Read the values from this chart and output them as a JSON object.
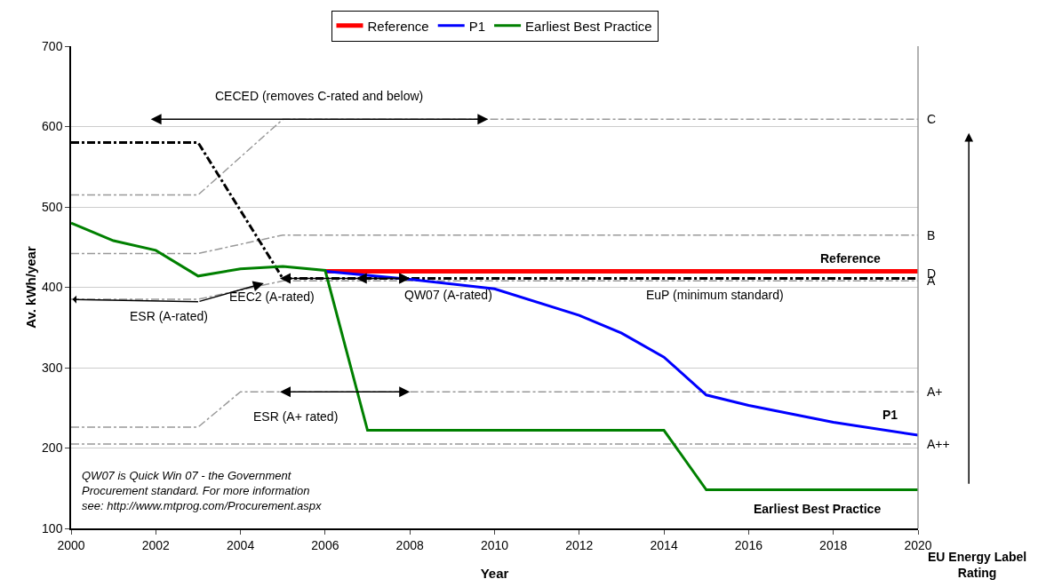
{
  "chart_data": {
    "type": "line",
    "xlabel": "Year",
    "ylabel": "Av. kWh/year",
    "xlim": [
      2000,
      2020
    ],
    "xticks": [
      2000,
      2002,
      2004,
      2006,
      2008,
      2010,
      2012,
      2014,
      2016,
      2018,
      2020
    ],
    "ylim": [
      100,
      700
    ],
    "yticks": [
      100,
      200,
      300,
      400,
      500,
      600,
      700
    ],
    "grid": "y",
    "legend": "top",
    "line_style": "solid",
    "marker": "none",
    "series": [
      {
        "name": "C",
        "color": "#999999",
        "line_style": "dashdot",
        "x": [
          2000,
          2003,
          2005,
          2020
        ],
        "values": [
          515,
          515,
          609,
          609
        ]
      },
      {
        "name": "B",
        "color": "#999999",
        "line_style": "dashdot",
        "x": [
          2000,
          2003,
          2005,
          2020
        ],
        "values": [
          442,
          442,
          465,
          465
        ]
      },
      {
        "name": "A",
        "color": "#999999",
        "line_style": "dashdot",
        "x": [
          2000,
          2003,
          2005,
          2020
        ],
        "values": [
          385,
          385,
          408,
          408
        ]
      },
      {
        "name": "A+",
        "color": "#999999",
        "line_style": "dashdot",
        "x": [
          2000,
          2003,
          2004,
          2020
        ],
        "values": [
          226,
          226,
          270,
          270
        ]
      },
      {
        "name": "A++",
        "color": "#999999",
        "line_style": "dashdot",
        "x": [
          2000,
          2020
        ],
        "values": [
          205,
          205
        ]
      },
      {
        "name": "D",
        "color": "#000000",
        "line_style": "dashdot",
        "x": [
          2000,
          2003,
          2005,
          2020
        ],
        "values": [
          580,
          580,
          411,
          411
        ]
      },
      {
        "name": "Reference",
        "color": "#ff0000",
        "x": [
          2006,
          2020
        ],
        "values": [
          420,
          420
        ]
      },
      {
        "name": "P1",
        "color": "#0000ff",
        "x": [
          2006,
          2007,
          2008,
          2010,
          2012,
          2013,
          2014,
          2015,
          2016,
          2018,
          2020
        ],
        "values": [
          420,
          415,
          410,
          398,
          365,
          343,
          313,
          266,
          253,
          232,
          216
        ]
      },
      {
        "name": "Earliest Best Practice",
        "color": "#008000",
        "x": [
          2000,
          2001,
          2002,
          2003,
          2004,
          2005,
          2006,
          2007,
          2014,
          2015,
          2020
        ],
        "values": [
          480,
          458,
          446,
          414,
          423,
          426,
          421,
          222,
          222,
          148,
          148
        ]
      }
    ],
    "annotations": [
      {
        "text": "CECED (removes C-rated and below)",
        "x": 2005.85,
        "y": 609
      },
      {
        "text": "ESR (A-rated)",
        "x": 2002.3,
        "y": 384
      },
      {
        "text": "EEC2 (A-rated)",
        "x": 2006.45,
        "y": 411
      },
      {
        "text": "QW07 (A-rated)",
        "x": 2007.35,
        "y": 411
      },
      "EuP (minimum standard)",
      {
        "text": "ESR (A+ rated)",
        "x": 2006.45,
        "y": 270
      },
      "QW07 is Quick Win 07 - the Government\nProcurement standard. For more information\nsee: http://www.mtprog.com/Procurement.aspx",
      "EU Energy Label\nRating"
    ]
  }
}
